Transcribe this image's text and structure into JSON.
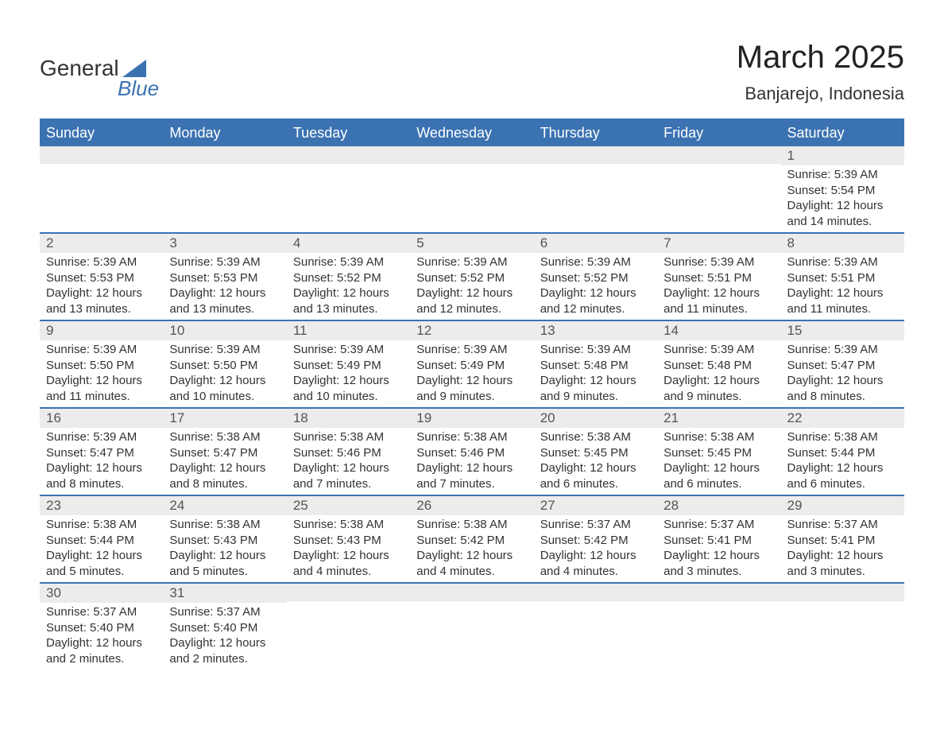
{
  "logo": {
    "text1": "General",
    "text2": "Blue"
  },
  "title": "March 2025",
  "location": "Banjarejo, Indonesia",
  "colors": {
    "header_bg": "#3b72b1",
    "header_text": "#ffffff",
    "daynum_bg": "#ececec",
    "daynum_text": "#555555",
    "body_text": "#333333",
    "border": "#3b72b1",
    "page_bg": "#ffffff"
  },
  "weekday_headers": [
    "Sunday",
    "Monday",
    "Tuesday",
    "Wednesday",
    "Thursday",
    "Friday",
    "Saturday"
  ],
  "weeks": [
    [
      {
        "day": "",
        "sunrise": "",
        "sunset": "",
        "daylight": ""
      },
      {
        "day": "",
        "sunrise": "",
        "sunset": "",
        "daylight": ""
      },
      {
        "day": "",
        "sunrise": "",
        "sunset": "",
        "daylight": ""
      },
      {
        "day": "",
        "sunrise": "",
        "sunset": "",
        "daylight": ""
      },
      {
        "day": "",
        "sunrise": "",
        "sunset": "",
        "daylight": ""
      },
      {
        "day": "",
        "sunrise": "",
        "sunset": "",
        "daylight": ""
      },
      {
        "day": "1",
        "sunrise": "Sunrise: 5:39 AM",
        "sunset": "Sunset: 5:54 PM",
        "daylight": "Daylight: 12 hours and 14 minutes."
      }
    ],
    [
      {
        "day": "2",
        "sunrise": "Sunrise: 5:39 AM",
        "sunset": "Sunset: 5:53 PM",
        "daylight": "Daylight: 12 hours and 13 minutes."
      },
      {
        "day": "3",
        "sunrise": "Sunrise: 5:39 AM",
        "sunset": "Sunset: 5:53 PM",
        "daylight": "Daylight: 12 hours and 13 minutes."
      },
      {
        "day": "4",
        "sunrise": "Sunrise: 5:39 AM",
        "sunset": "Sunset: 5:52 PM",
        "daylight": "Daylight: 12 hours and 13 minutes."
      },
      {
        "day": "5",
        "sunrise": "Sunrise: 5:39 AM",
        "sunset": "Sunset: 5:52 PM",
        "daylight": "Daylight: 12 hours and 12 minutes."
      },
      {
        "day": "6",
        "sunrise": "Sunrise: 5:39 AM",
        "sunset": "Sunset: 5:52 PM",
        "daylight": "Daylight: 12 hours and 12 minutes."
      },
      {
        "day": "7",
        "sunrise": "Sunrise: 5:39 AM",
        "sunset": "Sunset: 5:51 PM",
        "daylight": "Daylight: 12 hours and 11 minutes."
      },
      {
        "day": "8",
        "sunrise": "Sunrise: 5:39 AM",
        "sunset": "Sunset: 5:51 PM",
        "daylight": "Daylight: 12 hours and 11 minutes."
      }
    ],
    [
      {
        "day": "9",
        "sunrise": "Sunrise: 5:39 AM",
        "sunset": "Sunset: 5:50 PM",
        "daylight": "Daylight: 12 hours and 11 minutes."
      },
      {
        "day": "10",
        "sunrise": "Sunrise: 5:39 AM",
        "sunset": "Sunset: 5:50 PM",
        "daylight": "Daylight: 12 hours and 10 minutes."
      },
      {
        "day": "11",
        "sunrise": "Sunrise: 5:39 AM",
        "sunset": "Sunset: 5:49 PM",
        "daylight": "Daylight: 12 hours and 10 minutes."
      },
      {
        "day": "12",
        "sunrise": "Sunrise: 5:39 AM",
        "sunset": "Sunset: 5:49 PM",
        "daylight": "Daylight: 12 hours and 9 minutes."
      },
      {
        "day": "13",
        "sunrise": "Sunrise: 5:39 AM",
        "sunset": "Sunset: 5:48 PM",
        "daylight": "Daylight: 12 hours and 9 minutes."
      },
      {
        "day": "14",
        "sunrise": "Sunrise: 5:39 AM",
        "sunset": "Sunset: 5:48 PM",
        "daylight": "Daylight: 12 hours and 9 minutes."
      },
      {
        "day": "15",
        "sunrise": "Sunrise: 5:39 AM",
        "sunset": "Sunset: 5:47 PM",
        "daylight": "Daylight: 12 hours and 8 minutes."
      }
    ],
    [
      {
        "day": "16",
        "sunrise": "Sunrise: 5:39 AM",
        "sunset": "Sunset: 5:47 PM",
        "daylight": "Daylight: 12 hours and 8 minutes."
      },
      {
        "day": "17",
        "sunrise": "Sunrise: 5:38 AM",
        "sunset": "Sunset: 5:47 PM",
        "daylight": "Daylight: 12 hours and 8 minutes."
      },
      {
        "day": "18",
        "sunrise": "Sunrise: 5:38 AM",
        "sunset": "Sunset: 5:46 PM",
        "daylight": "Daylight: 12 hours and 7 minutes."
      },
      {
        "day": "19",
        "sunrise": "Sunrise: 5:38 AM",
        "sunset": "Sunset: 5:46 PM",
        "daylight": "Daylight: 12 hours and 7 minutes."
      },
      {
        "day": "20",
        "sunrise": "Sunrise: 5:38 AM",
        "sunset": "Sunset: 5:45 PM",
        "daylight": "Daylight: 12 hours and 6 minutes."
      },
      {
        "day": "21",
        "sunrise": "Sunrise: 5:38 AM",
        "sunset": "Sunset: 5:45 PM",
        "daylight": "Daylight: 12 hours and 6 minutes."
      },
      {
        "day": "22",
        "sunrise": "Sunrise: 5:38 AM",
        "sunset": "Sunset: 5:44 PM",
        "daylight": "Daylight: 12 hours and 6 minutes."
      }
    ],
    [
      {
        "day": "23",
        "sunrise": "Sunrise: 5:38 AM",
        "sunset": "Sunset: 5:44 PM",
        "daylight": "Daylight: 12 hours and 5 minutes."
      },
      {
        "day": "24",
        "sunrise": "Sunrise: 5:38 AM",
        "sunset": "Sunset: 5:43 PM",
        "daylight": "Daylight: 12 hours and 5 minutes."
      },
      {
        "day": "25",
        "sunrise": "Sunrise: 5:38 AM",
        "sunset": "Sunset: 5:43 PM",
        "daylight": "Daylight: 12 hours and 4 minutes."
      },
      {
        "day": "26",
        "sunrise": "Sunrise: 5:38 AM",
        "sunset": "Sunset: 5:42 PM",
        "daylight": "Daylight: 12 hours and 4 minutes."
      },
      {
        "day": "27",
        "sunrise": "Sunrise: 5:37 AM",
        "sunset": "Sunset: 5:42 PM",
        "daylight": "Daylight: 12 hours and 4 minutes."
      },
      {
        "day": "28",
        "sunrise": "Sunrise: 5:37 AM",
        "sunset": "Sunset: 5:41 PM",
        "daylight": "Daylight: 12 hours and 3 minutes."
      },
      {
        "day": "29",
        "sunrise": "Sunrise: 5:37 AM",
        "sunset": "Sunset: 5:41 PM",
        "daylight": "Daylight: 12 hours and 3 minutes."
      }
    ],
    [
      {
        "day": "30",
        "sunrise": "Sunrise: 5:37 AM",
        "sunset": "Sunset: 5:40 PM",
        "daylight": "Daylight: 12 hours and 2 minutes."
      },
      {
        "day": "31",
        "sunrise": "Sunrise: 5:37 AM",
        "sunset": "Sunset: 5:40 PM",
        "daylight": "Daylight: 12 hours and 2 minutes."
      },
      {
        "day": "",
        "sunrise": "",
        "sunset": "",
        "daylight": ""
      },
      {
        "day": "",
        "sunrise": "",
        "sunset": "",
        "daylight": ""
      },
      {
        "day": "",
        "sunrise": "",
        "sunset": "",
        "daylight": ""
      },
      {
        "day": "",
        "sunrise": "",
        "sunset": "",
        "daylight": ""
      },
      {
        "day": "",
        "sunrise": "",
        "sunset": "",
        "daylight": ""
      }
    ]
  ]
}
